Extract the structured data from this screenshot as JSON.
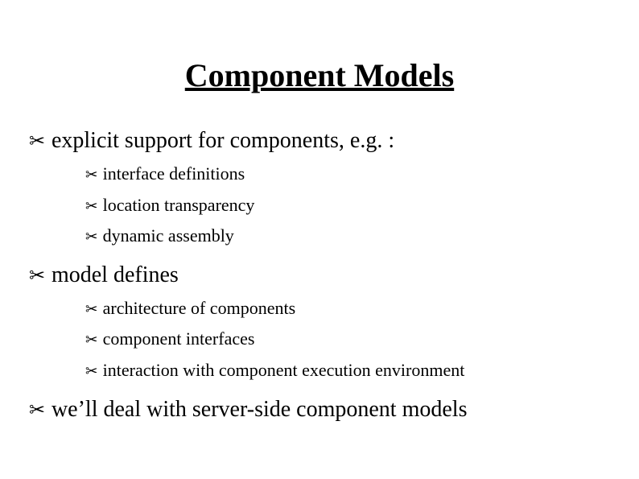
{
  "title": "Component Models",
  "colors": {
    "background": "#ffffff",
    "text": "#000000"
  },
  "typography": {
    "title_fontsize": 40,
    "level1_fontsize": 28,
    "level2_fontsize": 22,
    "font_family": "Times New Roman"
  },
  "bullet_glyph": "✂",
  "items": [
    {
      "text": "explicit support for components, e.g. :",
      "children": [
        {
          "text": "interface definitions"
        },
        {
          "text": "location transparency"
        },
        {
          "text": "dynamic assembly"
        }
      ]
    },
    {
      "text": "model defines",
      "children": [
        {
          "text": "architecture of components"
        },
        {
          "text": "component interfaces"
        },
        {
          "text": "interaction with component execution environment"
        }
      ]
    },
    {
      "text": "we’ll deal with server-side component models",
      "children": []
    }
  ]
}
